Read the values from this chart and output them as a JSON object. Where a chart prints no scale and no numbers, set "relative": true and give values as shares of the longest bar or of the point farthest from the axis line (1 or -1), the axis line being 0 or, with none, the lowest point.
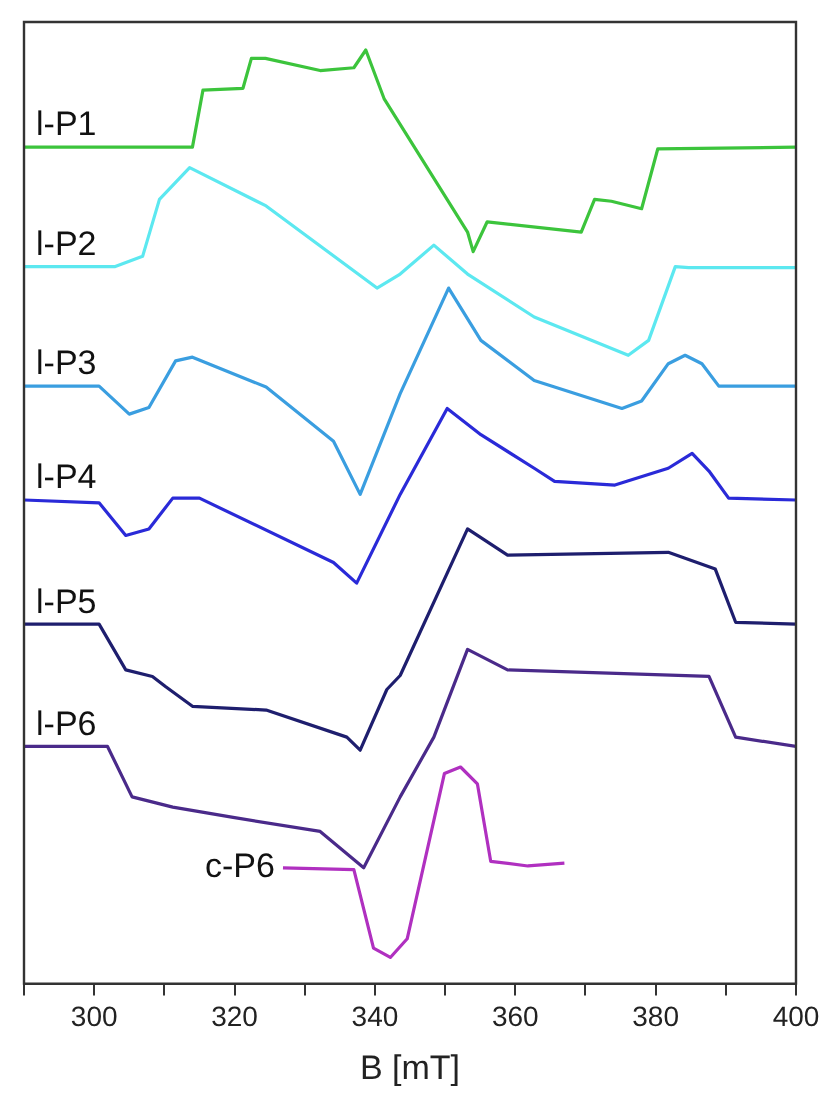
{
  "chart_data": {
    "type": "line",
    "xlabel": "B [mT]",
    "relative": true,
    "xlim": [
      290,
      400
    ],
    "xticks": [
      {
        "value": 290,
        "label": null
      },
      300,
      {
        "value": 310,
        "label": null
      },
      320,
      {
        "value": 330,
        "label": null
      },
      340,
      {
        "value": 350,
        "label": null
      },
      360,
      {
        "value": 370,
        "label": null
      },
      380,
      {
        "value": 390,
        "label": null
      },
      400
    ],
    "grid": false,
    "legend": false,
    "marker": "none",
    "line_style": "solid",
    "series": [
      {
        "name": "l-P1",
        "color": "#3cc43c",
        "x": [
          290,
          314.0,
          315.5,
          321.2,
          322.4,
          324.4,
          332.2,
          337.0,
          338.7,
          341.3,
          353.2,
          354.0,
          356.0,
          369.4,
          371.3,
          373.7,
          378.0,
          380.3,
          400
        ],
        "values": [
          0.896,
          0.896,
          0.957,
          0.959,
          0.991,
          0.991,
          0.978,
          0.981,
          1,
          0.948,
          0.805,
          0.784,
          0.816,
          0.805,
          0.84,
          0.838,
          0.83,
          0.894,
          0.896
        ]
      },
      {
        "name": "l-P2",
        "color": "#5ce8f0",
        "x": [
          290,
          303,
          306.9,
          309.3,
          313.6,
          324.5,
          340.3,
          343.6,
          348.4,
          353.2,
          362.7,
          376.1,
          379,
          382.8,
          384.7,
          400
        ],
        "values": [
          0.768,
          0.768,
          0.779,
          0.84,
          0.874,
          0.833,
          0.745,
          0.76,
          0.791,
          0.76,
          0.714,
          0.673,
          0.689,
          0.768,
          0.767,
          0.767
        ]
      },
      {
        "name": "l-P3",
        "color": "#3a9ee0",
        "x": [
          290,
          300.7,
          305,
          307.8,
          311.6,
          314,
          324.5,
          334.1,
          337.9,
          343.6,
          350.5,
          355.1,
          362.7,
          375.2,
          378,
          381.8,
          384.2,
          386.6,
          389,
          400
        ],
        "values": [
          0.64,
          0.64,
          0.61,
          0.617,
          0.667,
          0.671,
          0.639,
          0.581,
          0.524,
          0.632,
          0.745,
          0.689,
          0.646,
          0.616,
          0.624,
          0.664,
          0.673,
          0.664,
          0.64,
          0.64
        ]
      },
      {
        "name": "l-P4",
        "color": "#2a2ad8",
        "x": [
          290,
          300.7,
          304.5,
          307.8,
          311.2,
          315,
          334.1,
          337.4,
          343.6,
          350.3,
          355.1,
          362.7,
          365.6,
          374.2,
          381.8,
          385.2,
          387.6,
          390.4,
          400
        ],
        "values": [
          0.518,
          0.515,
          0.48,
          0.487,
          0.52,
          0.52,
          0.451,
          0.429,
          0.524,
          0.616,
          0.588,
          0.552,
          0.538,
          0.534,
          0.552,
          0.568,
          0.549,
          0.52,
          0.518
        ]
      },
      {
        "name": "l-P5",
        "color": "#1e1e6e",
        "x": [
          290,
          300.7,
          304.5,
          308.3,
          310.2,
          314,
          324.5,
          336,
          337.9,
          341.7,
          343.6,
          353.2,
          358.9,
          381.8,
          388.5,
          391.4,
          400
        ],
        "values": [
          0.385,
          0.385,
          0.336,
          0.329,
          0.318,
          0.297,
          0.293,
          0.264,
          0.25,
          0.315,
          0.33,
          0.487,
          0.459,
          0.462,
          0.444,
          0.387,
          0.385
        ]
      },
      {
        "name": "l-P6",
        "color": "#4a2a8a",
        "x": [
          290,
          301.9,
          305.4,
          311.2,
          319.8,
          332.2,
          338.4,
          343.6,
          348.4,
          353.2,
          358.9,
          387.6,
          391.4,
          400
        ],
        "values": [
          0.254,
          0.254,
          0.2,
          0.189,
          0.178,
          0.163,
          0.124,
          0.2,
          0.264,
          0.358,
          0.336,
          0.329,
          0.264,
          0.254
        ]
      },
      {
        "name": "c-P6",
        "color": "#b030c0",
        "x": [
          326.9,
          337,
          339.8,
          342.2,
          344.6,
          349.9,
          352.2,
          354.6,
          356.5,
          361.8,
          367
        ],
        "values": [
          0.124,
          0.122,
          0.038,
          0.028,
          0.048,
          0.225,
          0.232,
          0.214,
          0.131,
          0.126,
          0.129
        ]
      }
    ]
  }
}
